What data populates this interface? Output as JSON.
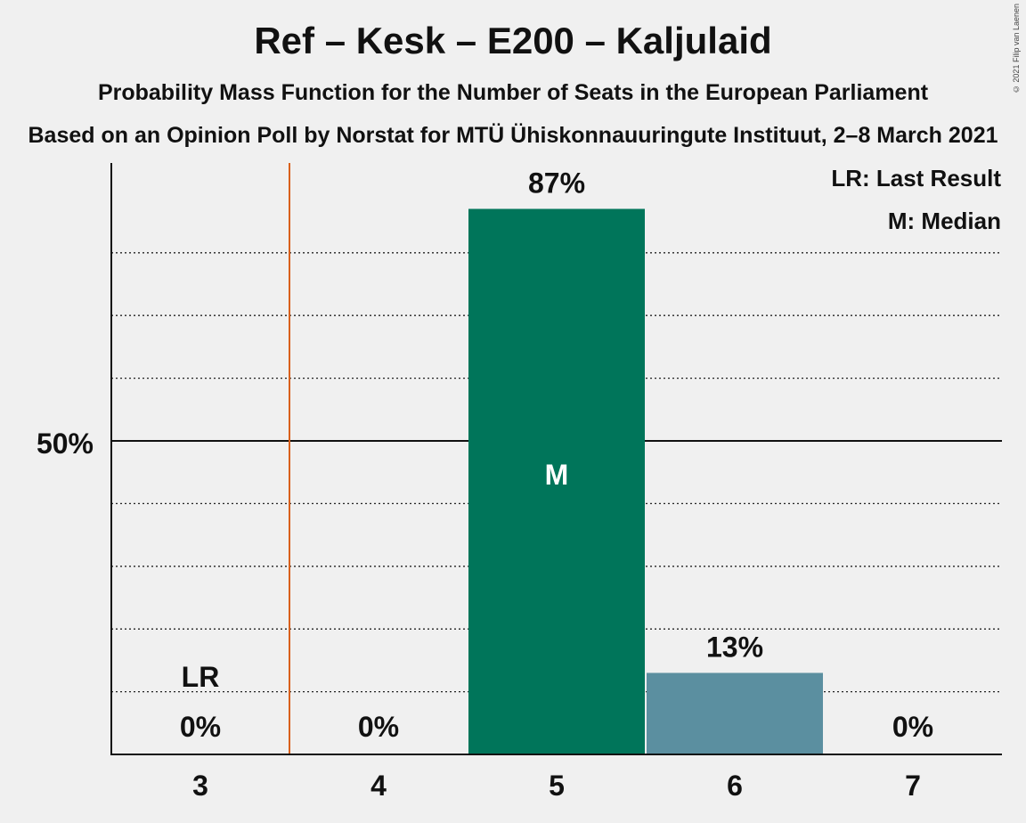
{
  "header": {
    "title": "Ref – Kesk – E200 – Kaljulaid",
    "subtitle": "Probability Mass Function for the Number of Seats in the European Parliament",
    "source": "Based on an Opinion Poll by Norstat for MTÜ Ühiskonnauuringute Instituut, 2–8 March 2021",
    "copyright": "© 2021 Filip van Laenen"
  },
  "legend": {
    "last_result": "LR: Last Result",
    "median": "M: Median"
  },
  "chart_data": {
    "type": "bar",
    "title": "Ref – Kesk – E200 – Kaljulaid",
    "categories": [
      "3",
      "4",
      "5",
      "6",
      "7"
    ],
    "values": [
      0,
      0,
      87,
      13,
      0
    ],
    "value_labels": [
      "0%",
      "0%",
      "87%",
      "13%",
      "0%"
    ],
    "ylim": [
      0,
      100
    ],
    "y_tick_label": "50%",
    "y_tick_value": 50,
    "gridlines": [
      10,
      20,
      30,
      40,
      60,
      70,
      80
    ],
    "last_result_category": "3",
    "last_result_label": "LR",
    "median_category": "5",
    "median_label": "M",
    "colors": {
      "median_bar": "#00755a",
      "other_bar": "#5b8fa0",
      "last_result_line": "#d9601a",
      "axis": "#111111"
    }
  }
}
